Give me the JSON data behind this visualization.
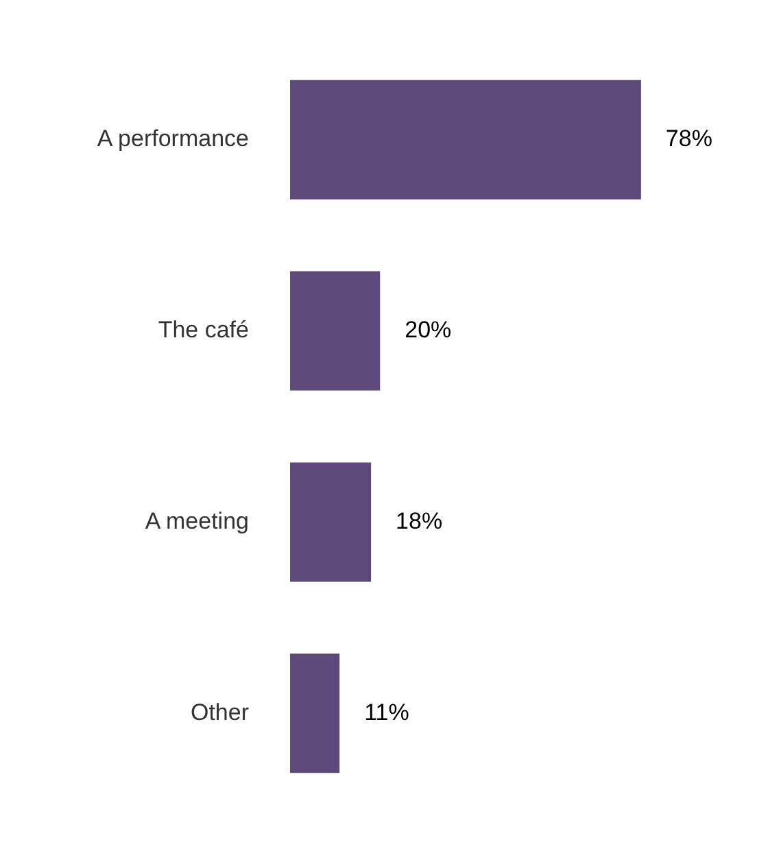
{
  "chart_data": {
    "type": "bar",
    "orientation": "horizontal",
    "categories": [
      "A performance",
      "The café",
      "A meeting",
      "Other"
    ],
    "values": [
      78,
      20,
      18,
      11
    ],
    "color": "#5e4a7a",
    "value_labels": [
      "78%",
      "20%",
      "18%",
      "11%"
    ],
    "legend": false
  }
}
